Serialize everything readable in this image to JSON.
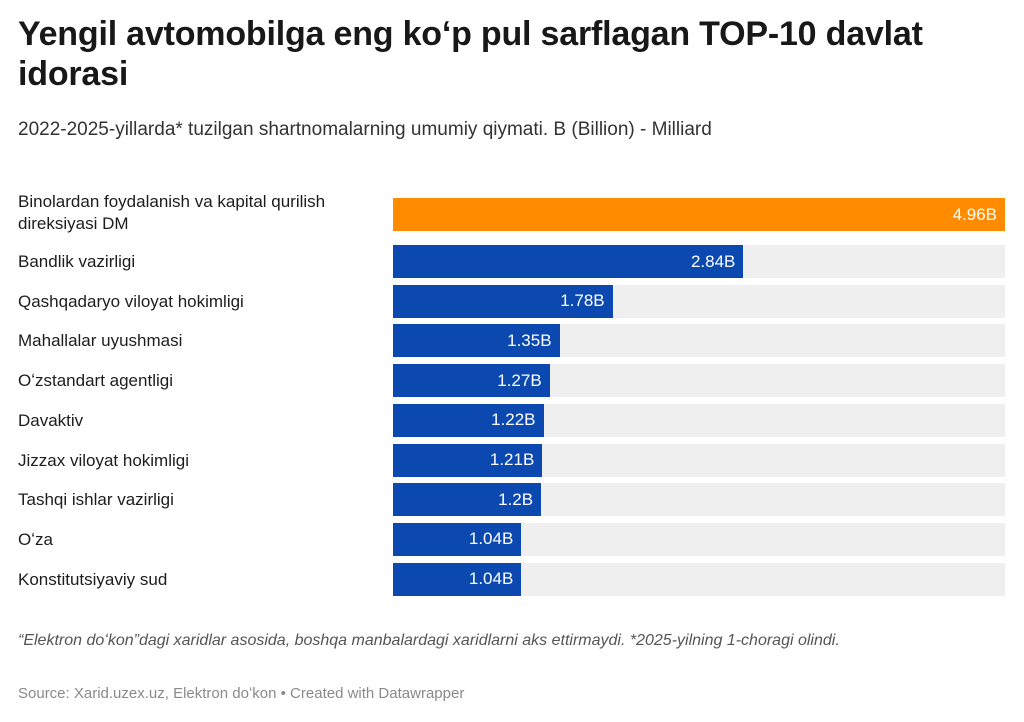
{
  "header": {
    "title": "Yengil avtomobilga eng koʻp pul sarflagan TOP-10 davlat idorasi",
    "subtitle": "2022-2025-yillarda* tuzilgan shartnomalarning umumiy qiymati. B (Billion) - Milliard"
  },
  "chart_data": {
    "type": "bar",
    "orientation": "horizontal",
    "title": "Yengil avtomobilga eng koʻp pul sarflagan TOP-10 davlat idorasi",
    "subtitle": "2022-2025-yillarda* tuzilgan shartnomalarning umumiy qiymati. B (Billion) - Milliard",
    "xlim": [
      0,
      4.96
    ],
    "grid": false,
    "legend": "none",
    "categories": [
      "Binolardan foydalanish va kapital qurilish direksiyasi DM",
      "Bandlik vazirligi",
      "Qashqadaryo viloyat hokimligi",
      "Mahallalar uyushmasi",
      "Oʻzstandart agentligi",
      "Davaktiv",
      "Jizzax viloyat hokimligi",
      "Tashqi ishlar vazirligi",
      "Oʻza",
      "Konstitutsiyaviy sud"
    ],
    "values": [
      4.96,
      2.84,
      1.78,
      1.35,
      1.27,
      1.22,
      1.21,
      1.2,
      1.04,
      1.04
    ],
    "value_labels": [
      "4.96B",
      "2.84B",
      "1.78B",
      "1.35B",
      "1.27B",
      "1.22B",
      "1.21B",
      "1.2B",
      "1.04B",
      "1.04B"
    ],
    "highlight_index": 0,
    "colors": {
      "highlight": "#ff8c00",
      "bar": "#0b49b0",
      "track": "#efefef",
      "value_text": "#ffffff"
    }
  },
  "footer": {
    "note": "“Elektron doʻkon”dagi xaridlar asosida, boshqa manbalardagi xaridlarni aks ettirmaydi. *2025-yilning 1-choragi olindi.",
    "source": "Source: Xarid.uzex.uz, Elektron doʻkon • Created with Datawrapper"
  }
}
